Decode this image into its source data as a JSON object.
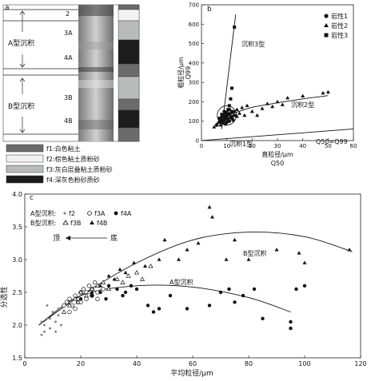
{
  "panels": {
    "a": {
      "label": "a",
      "group_labels": [
        "A型沉积",
        "B型沉积"
      ],
      "layer_labels": [
        "2",
        "3A",
        "4A",
        "3B",
        "4B"
      ],
      "legend": [
        {
          "code": "f1",
          "text": "f1:白色粘土",
          "color": "#6b6b6b"
        },
        {
          "code": "f2",
          "text": "f2:棕色粘土质粉砂",
          "color": "#f2f2f2"
        },
        {
          "code": "f3",
          "text": "f3:灰白层叠粘土质粉砂",
          "color": "#b9bcbc"
        },
        {
          "code": "f4",
          "text": "f4:深灰色粉砂质砂",
          "color": "#1c1c1c"
        }
      ],
      "facies_column": [
        "f1",
        "f2",
        "f3",
        "f4",
        "f1",
        "f3",
        "f1",
        "f4",
        "f1"
      ]
    }
  },
  "chart_data": [
    {
      "panel": "b",
      "type": "scatter",
      "xlabel_top": "直粒径/μm",
      "xlabel_bottom": "Q50",
      "ylabel": "粗粒径/μm",
      "ylabel2": "Q99",
      "xlim": [
        0,
        60
      ],
      "ylim": [
        0,
        700
      ],
      "xticks": [
        0,
        10,
        20,
        30,
        40,
        50,
        60
      ],
      "yticks": [
        0,
        100,
        200,
        300,
        400,
        500,
        600,
        700
      ],
      "legend": [
        "岩性1",
        "岩性2",
        "岩性3"
      ],
      "annotations": [
        "沉积3型",
        "沉积2型",
        "沉积1型",
        "Q50=Q99"
      ],
      "series": [
        {
          "name": "岩性1",
          "marker": "circle",
          "points": [
            [
              6,
              80
            ],
            [
              7,
              95
            ],
            [
              7.5,
              110
            ],
            [
              8,
              100
            ],
            [
              8,
              120
            ],
            [
              8.5,
              90
            ],
            [
              9,
              130
            ],
            [
              9,
              105
            ],
            [
              9.5,
              115
            ],
            [
              10,
              140
            ],
            [
              10,
              125
            ],
            [
              10.5,
              110
            ],
            [
              11,
              135
            ],
            [
              11,
              100
            ],
            [
              11.5,
              120
            ],
            [
              12,
              145
            ],
            [
              12,
              115
            ],
            [
              13,
              130
            ],
            [
              8,
              135
            ],
            [
              9,
              150
            ],
            [
              10,
              95
            ],
            [
              7,
              115
            ],
            [
              12.5,
              105
            ],
            [
              11,
              160
            ],
            [
              9.5,
              85
            ]
          ]
        },
        {
          "name": "岩性2",
          "marker": "triangle",
          "points": [
            [
              5,
              70
            ],
            [
              6,
              85
            ],
            [
              7,
              95
            ],
            [
              7.5,
              80
            ],
            [
              8,
              105
            ],
            [
              9,
              115
            ],
            [
              10,
              120
            ],
            [
              11,
              140
            ],
            [
              12,
              125
            ],
            [
              13,
              150
            ],
            [
              14,
              160
            ],
            [
              15,
              140
            ],
            [
              16,
              170
            ],
            [
              18,
              180
            ],
            [
              20,
              150
            ],
            [
              22,
              130
            ],
            [
              24,
              165
            ],
            [
              26,
              190
            ],
            [
              28,
              175
            ],
            [
              30,
              200
            ],
            [
              32,
              185
            ],
            [
              34,
              220
            ],
            [
              40,
              230
            ],
            [
              48,
              245
            ],
            [
              50,
              250
            ],
            [
              14,
              125
            ],
            [
              17,
              130
            ]
          ]
        },
        {
          "name": "岩性3",
          "marker": "square",
          "points": [
            [
              13,
              585
            ],
            [
              12,
              270
            ],
            [
              11.5,
              215
            ],
            [
              11,
              180
            ],
            [
              10.5,
              160
            ],
            [
              12,
              150
            ],
            [
              10,
              145
            ],
            [
              9.5,
              135
            ]
          ]
        }
      ],
      "lines": [
        {
          "name": "沉积3型",
          "x": [
            8,
            13.5
          ],
          "y": [
            60,
            650
          ]
        },
        {
          "name": "沉积2型",
          "x": [
            7,
            10,
            20,
            30,
            40,
            50
          ],
          "y": [
            75,
            130,
            172,
            195,
            215,
            232
          ]
        },
        {
          "name": "Q50=Q99",
          "x": [
            0,
            60
          ],
          "y": [
            0,
            60
          ]
        }
      ],
      "highlight_circle": {
        "center": [
          10,
          130
        ],
        "label": "沉积1型"
      }
    },
    {
      "panel": "c",
      "type": "scatter",
      "xlabel": "平均粒径/μm",
      "ylabel": "分选性",
      "xlim": [
        0,
        120
      ],
      "ylim": [
        1.5,
        4.0
      ],
      "xticks": [
        0,
        20,
        40,
        60,
        80,
        100,
        120
      ],
      "yticks": [
        1.5,
        2.0,
        2.5,
        3.0,
        3.5,
        4.0
      ],
      "legend_rows": [
        {
          "group": "A型沉积:",
          "items": [
            "f2",
            "f3A",
            "f4A"
          ]
        },
        {
          "group": "B型沉积:",
          "items": [
            "f3B",
            "f4B"
          ]
        }
      ],
      "direction": {
        "left": "顶",
        "right": "底"
      },
      "annotations": [
        "B型沉积",
        "A型沉积"
      ],
      "series": [
        {
          "name": "f2",
          "marker": "small-dot",
          "points": [
            [
              6,
              1.85
            ],
            [
              7,
              2.0
            ],
            [
              8,
              2.1
            ],
            [
              9,
              1.95
            ],
            [
              10,
              2.2
            ],
            [
              11,
              2.05
            ],
            [
              12,
              2.15
            ],
            [
              13,
              2.0
            ],
            [
              8,
              2.3
            ],
            [
              7,
              1.9
            ],
            [
              14,
              2.2
            ],
            [
              12,
              2.25
            ],
            [
              9,
              2.1
            ],
            [
              6,
              2.05
            ],
            [
              11,
              1.9
            ]
          ]
        },
        {
          "name": "f3A",
          "marker": "open-circle",
          "points": [
            [
              14,
              2.3
            ],
            [
              15,
              2.35
            ],
            [
              16,
              2.4
            ],
            [
              17,
              2.3
            ],
            [
              18,
              2.45
            ],
            [
              19,
              2.35
            ],
            [
              20,
              2.5
            ],
            [
              21,
              2.55
            ],
            [
              22,
              2.4
            ],
            [
              23,
              2.6
            ],
            [
              24,
              2.45
            ],
            [
              25,
              2.65
            ],
            [
              26,
              2.5
            ],
            [
              16,
              2.2
            ],
            [
              18,
              2.25
            ],
            [
              20,
              2.35
            ],
            [
              22,
              2.5
            ],
            [
              24,
              2.55
            ],
            [
              26,
              2.4
            ],
            [
              28,
              2.55
            ]
          ]
        },
        {
          "name": "f4A",
          "marker": "filled-circle",
          "points": [
            [
              20,
              2.4
            ],
            [
              24,
              2.45
            ],
            [
              27,
              2.5
            ],
            [
              30,
              2.6
            ],
            [
              33,
              2.55
            ],
            [
              36,
              2.5
            ],
            [
              38,
              2.6
            ],
            [
              40,
              2.55
            ],
            [
              44,
              2.3
            ],
            [
              46,
              2.2
            ],
            [
              48,
              2.25
            ],
            [
              52,
              2.45
            ],
            [
              58,
              2.25
            ],
            [
              66,
              2.3
            ],
            [
              70,
              2.5
            ],
            [
              73,
              2.55
            ],
            [
              75,
              2.35
            ],
            [
              78,
              2.45
            ],
            [
              82,
              2.55
            ],
            [
              85,
              2.1
            ],
            [
              95,
              1.95
            ],
            [
              95,
              2.05
            ],
            [
              97,
              2.55
            ],
            [
              100,
              2.6
            ],
            [
              29,
              2.4
            ],
            [
              35,
              2.45
            ]
          ]
        },
        {
          "name": "f3B",
          "marker": "open-triangle",
          "points": [
            [
              14,
              2.2
            ],
            [
              16,
              2.3
            ],
            [
              18,
              2.4
            ],
            [
              20,
              2.5
            ],
            [
              22,
              2.45
            ],
            [
              24,
              2.55
            ],
            [
              26,
              2.6
            ],
            [
              28,
              2.65
            ],
            [
              30,
              2.55
            ],
            [
              33,
              2.7
            ],
            [
              35,
              2.65
            ],
            [
              37,
              2.75
            ],
            [
              40,
              2.8
            ],
            [
              42,
              2.7
            ],
            [
              45,
              2.9
            ],
            [
              19,
              2.35
            ],
            [
              23,
              2.5
            ]
          ]
        },
        {
          "name": "f4B",
          "marker": "filled-triangle",
          "points": [
            [
              24,
              2.5
            ],
            [
              27,
              2.6
            ],
            [
              30,
              2.75
            ],
            [
              32,
              2.7
            ],
            [
              34,
              2.85
            ],
            [
              36,
              2.8
            ],
            [
              39,
              2.95
            ],
            [
              43,
              2.9
            ],
            [
              50,
              3.3
            ],
            [
              55,
              3.0
            ],
            [
              58,
              3.15
            ],
            [
              62,
              3.25
            ],
            [
              66,
              3.8
            ],
            [
              67,
              3.65
            ],
            [
              72,
              3.0
            ],
            [
              75,
              3.3
            ],
            [
              80,
              3.0
            ],
            [
              90,
              3.15
            ],
            [
              98,
              3.1
            ],
            [
              100,
              2.95
            ],
            [
              116,
              3.15
            ],
            [
              48,
              3.0
            ]
          ]
        }
      ],
      "curves": [
        {
          "name": "B型沉积",
          "x": [
            5,
            20,
            40,
            60,
            80,
            100,
            117
          ],
          "y": [
            2.0,
            2.45,
            2.95,
            3.3,
            3.42,
            3.35,
            3.12
          ]
        },
        {
          "name": "A型沉积",
          "x": [
            5,
            20,
            40,
            60,
            80,
            95
          ],
          "y": [
            2.0,
            2.45,
            2.6,
            2.58,
            2.42,
            2.2
          ]
        }
      ]
    }
  ]
}
